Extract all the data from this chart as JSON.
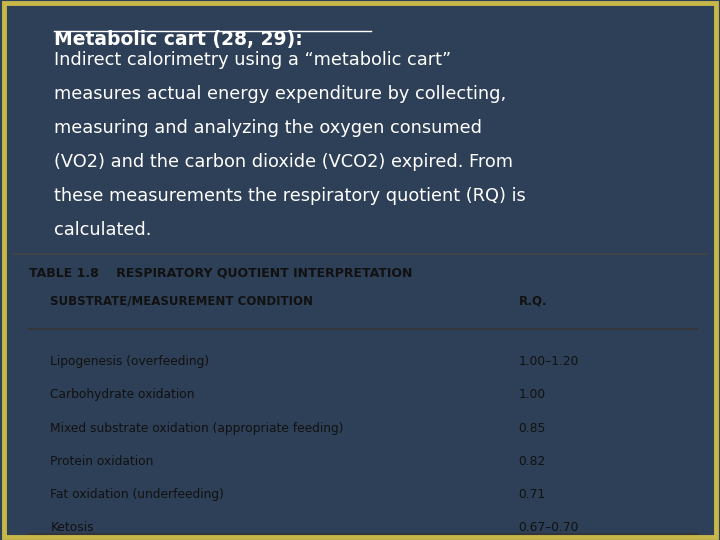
{
  "bg_top_color": "#2e4057",
  "bg_bottom_color": "#1a2a3a",
  "border_color": "#c8b84a",
  "title_text": "Metabolic cart (28, 29):",
  "body_text": [
    "Indirect calorimetry using a “metabolic cart”",
    "measures actual energy expenditure by collecting,",
    "measuring and analyzing the oxygen consumed",
    "(VO2) and the carbon dioxide (VCO2) expired. From",
    "these measurements the respiratory quotient (RQ) is",
    "calculated."
  ],
  "table_title": "TABLE 1.8    RESPIRATORY QUOTIENT INTERPRETATION",
  "col1_header": "SUBSTRATE/MEASUREMENT CONDITION",
  "col2_header": "R.Q.",
  "rows": [
    [
      "Lipogenesis (overfeeding)",
      "1.00–1.20"
    ],
    [
      "Carbohydrate oxidation",
      "1.00"
    ],
    [
      "Mixed substrate oxidation (appropriate feeding)",
      "0.85"
    ],
    [
      "Protein oxidation",
      "0.82"
    ],
    [
      "Fat oxidation (underfeeding)",
      "0.71"
    ],
    [
      "Ketosis",
      "0.67–0.70"
    ]
  ],
  "text_color_top": "#ffffff",
  "text_color_table": "#111111",
  "table_bg": "#ffffff"
}
